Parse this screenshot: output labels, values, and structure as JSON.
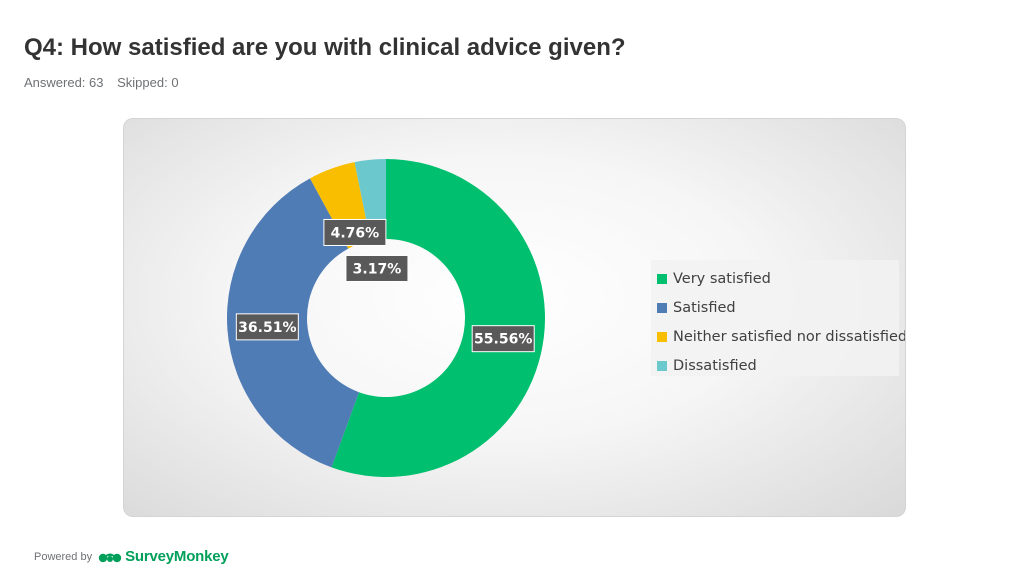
{
  "header": {
    "title": "Q4: How satisfied are you with clinical advice given?",
    "answered": "Answered: 63",
    "skipped": "Skipped: 0"
  },
  "chart_data": {
    "type": "pie",
    "variant": "donut",
    "title": "",
    "legend_position": "right",
    "categories": [
      "Very satisfied",
      "Satisfied",
      "Neither satisfied nor dissatisfied",
      "Dissatisfied"
    ],
    "values": [
      55.56,
      36.51,
      4.76,
      3.17
    ],
    "labels": [
      "55.56%",
      "36.51%",
      "4.76%",
      "3.17%"
    ],
    "colors": [
      "#00bf6f",
      "#507cb6",
      "#f9be00",
      "#6bc8cd"
    ]
  },
  "footer": {
    "powered_by": "Powered by",
    "brand": "SurveyMonkey",
    "logo_icon": "surveymonkey-logo-icon"
  }
}
